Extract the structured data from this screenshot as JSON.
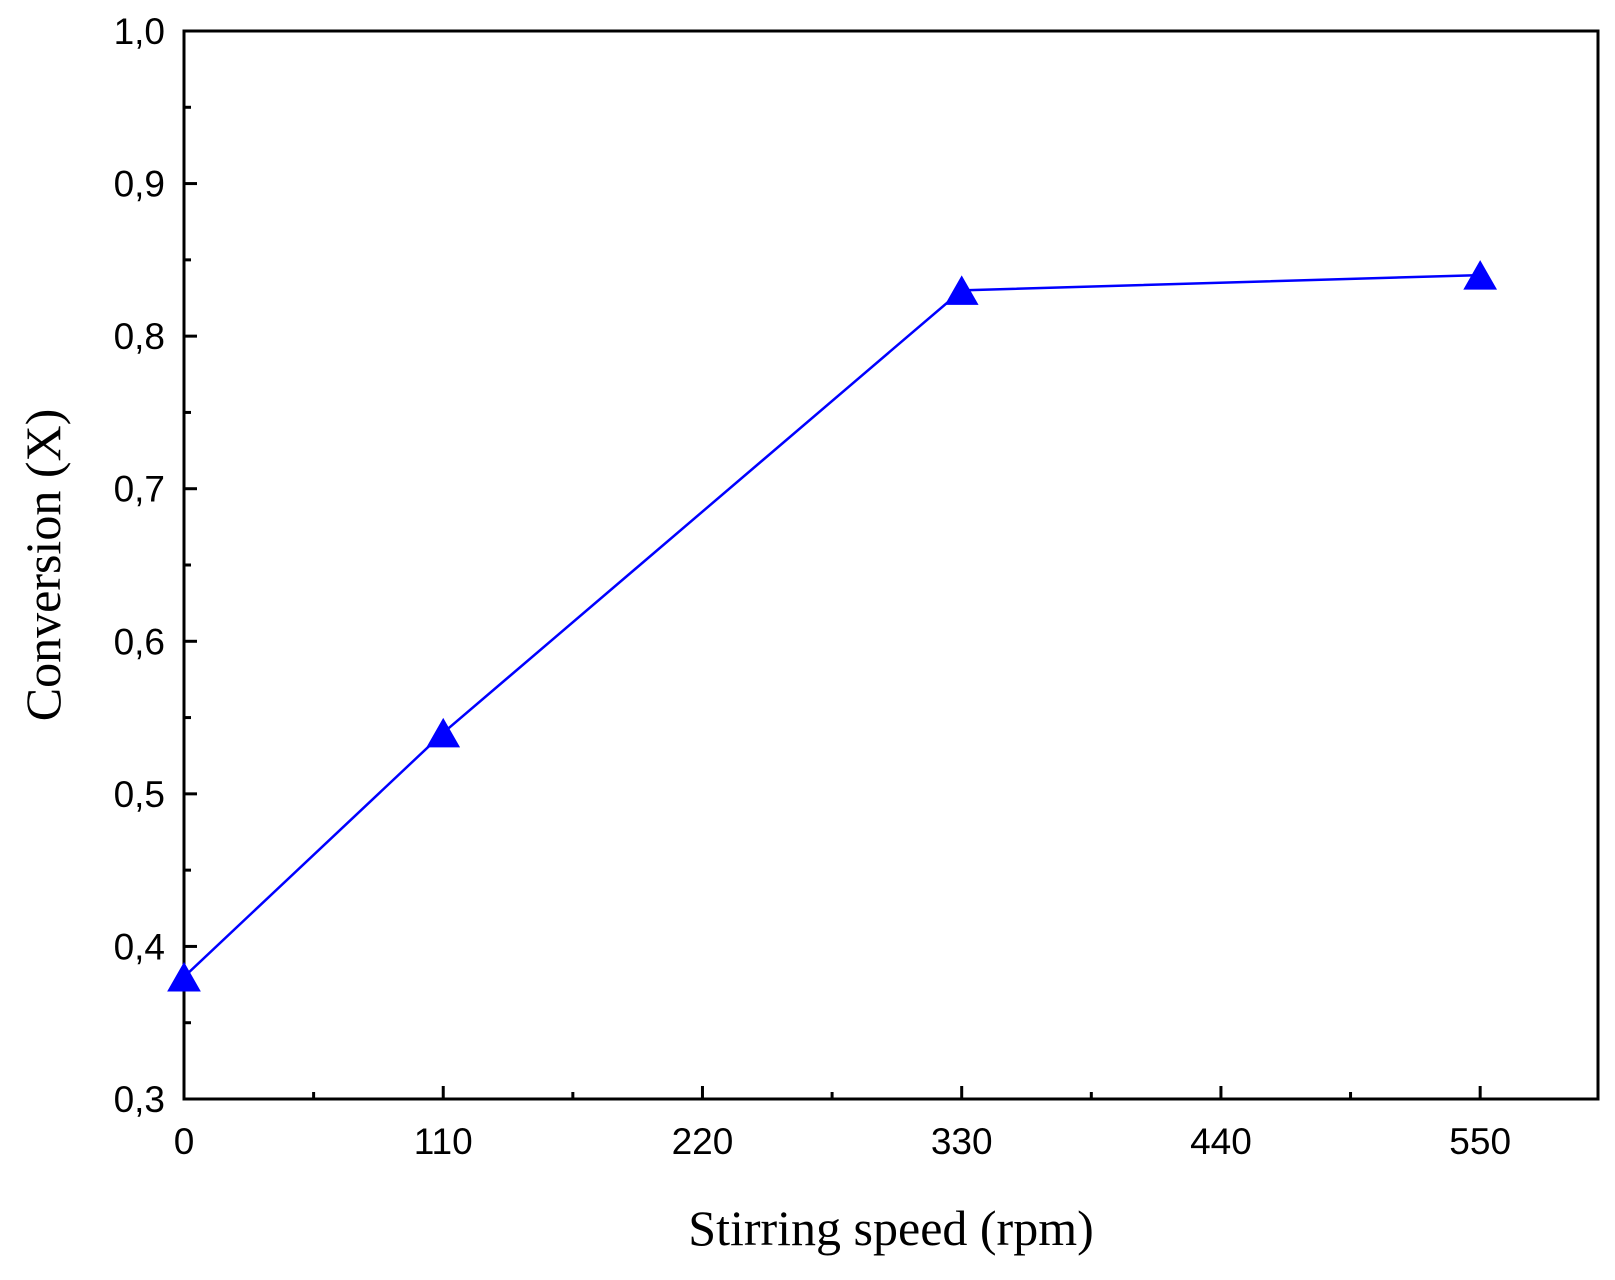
{
  "chart_data": {
    "type": "line",
    "xlabel": "Stirring speed (rpm)",
    "ylabel": "Conversion (X)",
    "xlim": [
      0,
      600
    ],
    "ylim": [
      0.3,
      1.0
    ],
    "x_ticks": [
      0,
      110,
      220,
      330,
      440,
      550
    ],
    "x_tick_labels": [
      "0",
      "110",
      "220",
      "330",
      "440",
      "550"
    ],
    "y_ticks": [
      0.3,
      0.4,
      0.5,
      0.6,
      0.7,
      0.8,
      0.9,
      1.0
    ],
    "y_tick_labels": [
      "0,3",
      "0,4",
      "0,5",
      "0,6",
      "0,7",
      "0,8",
      "0,9",
      "1,0"
    ],
    "x_minor_step": 55,
    "y_minor_step": 0.05,
    "grid": false,
    "legend": "none",
    "marker": "triangle",
    "series": [
      {
        "color": "#0000ff",
        "x": [
          0,
          110,
          330,
          550
        ],
        "y": [
          0.38,
          0.54,
          0.83,
          0.84
        ]
      }
    ]
  }
}
